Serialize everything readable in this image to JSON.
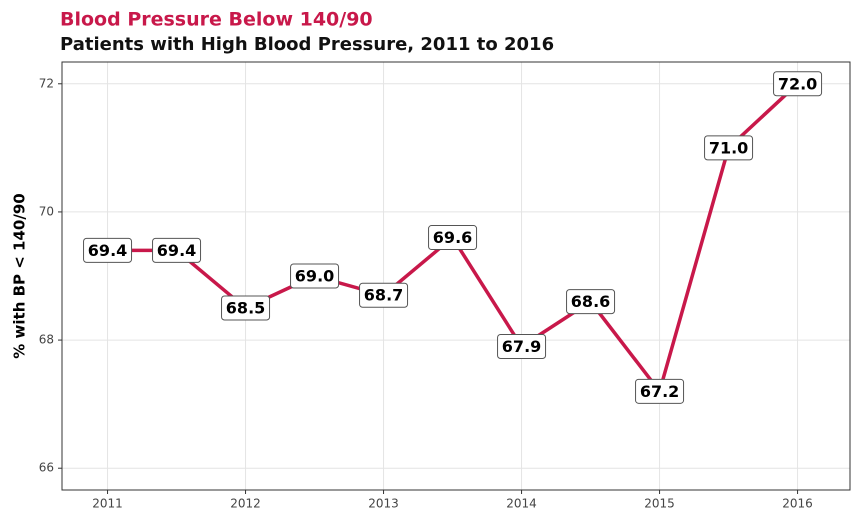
{
  "chart_data": {
    "type": "line",
    "title": "Blood Pressure Below 140/90",
    "subtitle": "Patients with High Blood Pressure, 2011 to 2016",
    "y_label": "% with BP < 140/90",
    "x": [
      2011,
      2011.5,
      2012,
      2012.5,
      2013,
      2013.5,
      2014,
      2014.5,
      2015,
      2015.5,
      2016
    ],
    "series": [
      {
        "name": "% with BP < 140/90",
        "color": "#c8184a",
        "values": [
          69.4,
          69.4,
          68.5,
          69.0,
          68.7,
          69.6,
          67.9,
          68.6,
          67.2,
          71.0,
          72.0
        ],
        "value_labels": [
          "69.4",
          "69.4",
          "68.5",
          "69.0",
          "68.7",
          "69.6",
          "67.9",
          "68.6",
          "67.2",
          "71.0",
          "72.0"
        ]
      }
    ],
    "xlim": [
      2010.67,
      2016.38
    ],
    "xticks": [
      2011,
      2012,
      2013,
      2014,
      2015,
      2016
    ],
    "ylim": [
      65.66,
      72.34
    ],
    "yticks": [
      66,
      68,
      70,
      72
    ],
    "grid": true
  }
}
